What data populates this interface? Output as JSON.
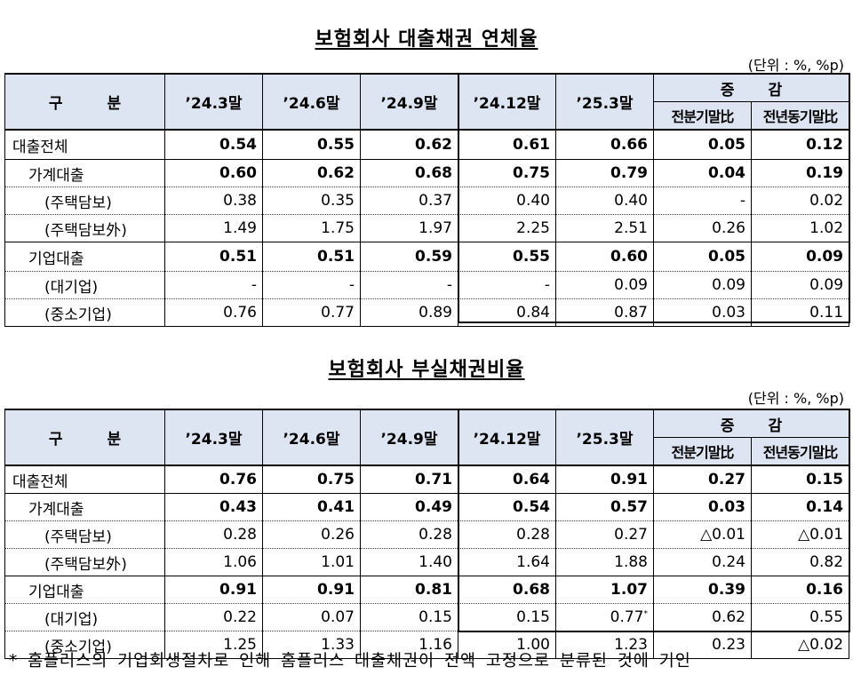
{
  "unit_label": "(단위 : %, %p)",
  "header": {
    "category": "구 분",
    "periods": [
      "’24.3말",
      "’24.6말",
      "’24.9말",
      "’24.12말",
      "’25.3말"
    ],
    "change": "증 감",
    "change_sub": [
      "전분기말比",
      "전년동기말比"
    ]
  },
  "tables": [
    {
      "title": "보험회사 대출채권 연체율",
      "rows": [
        {
          "label": "대출전체",
          "values": [
            "0.54",
            "0.55",
            "0.62",
            "0.61",
            "0.66",
            "0.05",
            "0.12"
          ]
        },
        {
          "label": "가계대출",
          "values": [
            "0.60",
            "0.62",
            "0.68",
            "0.75",
            "0.79",
            "0.04",
            "0.19"
          ]
        },
        {
          "label": "(주택담보)",
          "values": [
            "0.38",
            "0.35",
            "0.37",
            "0.40",
            "0.40",
            "-",
            "0.02"
          ]
        },
        {
          "label": "(주택담보外)",
          "values": [
            "1.49",
            "1.75",
            "1.97",
            "2.25",
            "2.51",
            "0.26",
            "1.02"
          ]
        },
        {
          "label": "기업대출",
          "values": [
            "0.51",
            "0.51",
            "0.59",
            "0.55",
            "0.60",
            "0.05",
            "0.09"
          ]
        },
        {
          "label": "(대기업)",
          "values": [
            "-",
            "-",
            "-",
            "-",
            "0.09",
            "0.09",
            "0.09"
          ]
        },
        {
          "label": "(중소기업)",
          "values": [
            "0.76",
            "0.77",
            "0.89",
            "0.84",
            "0.87",
            "0.03",
            "0.11"
          ]
        }
      ]
    },
    {
      "title": "보험회사 부실채권비율",
      "rows": [
        {
          "label": "대출전체",
          "values": [
            "0.76",
            "0.75",
            "0.71",
            "0.64",
            "0.91",
            "0.27",
            "0.15"
          ]
        },
        {
          "label": "가계대출",
          "values": [
            "0.43",
            "0.41",
            "0.49",
            "0.54",
            "0.57",
            "0.03",
            "0.14"
          ]
        },
        {
          "label": "(주택담보)",
          "values": [
            "0.28",
            "0.26",
            "0.28",
            "0.28",
            "0.27",
            "△0.01",
            "△0.01"
          ]
        },
        {
          "label": "(주택담보外)",
          "values": [
            "1.06",
            "1.01",
            "1.40",
            "1.64",
            "1.88",
            "0.24",
            "0.82"
          ]
        },
        {
          "label": "기업대출",
          "values": [
            "0.91",
            "0.91",
            "0.81",
            "0.68",
            "1.07",
            "0.39",
            "0.16"
          ]
        },
        {
          "label": "(대기업)",
          "values": [
            "0.22",
            "0.07",
            "0.15",
            "0.15",
            "0.77",
            "0.62",
            "0.55"
          ]
        },
        {
          "label": "(중소기업)",
          "values": [
            "1.25",
            "1.33",
            "1.16",
            "1.00",
            "1.23",
            "0.23",
            "△0.02"
          ]
        }
      ]
    }
  ],
  "footnote_marker": "*",
  "footnote": "* 홈플러스의 기업회생절차로 인해 홈플러스 대출채권이 전액 고정으로 분류된 것에 기인"
}
